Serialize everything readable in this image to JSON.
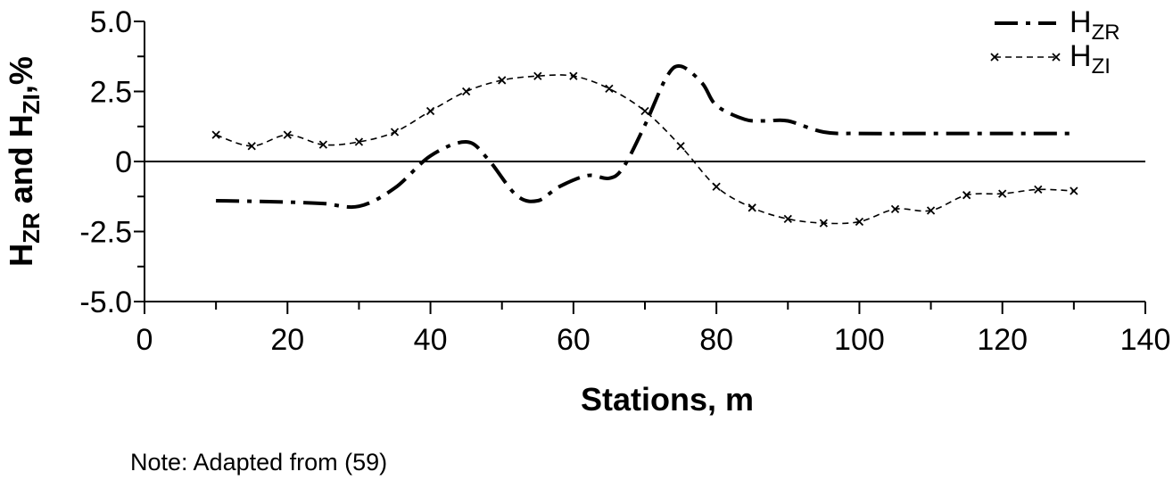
{
  "chart_data": {
    "type": "line",
    "xlabel": "Stations, m",
    "ylabel": {
      "parts": [
        {
          "text": "H",
          "sub": false
        },
        {
          "text": "ZR",
          "sub": true
        },
        {
          "text": " and H",
          "sub": false
        },
        {
          "text": "ZI",
          "sub": true
        },
        {
          "text": ",%",
          "sub": false
        }
      ]
    },
    "xlim": [
      0,
      140
    ],
    "ylim": [
      -5,
      5
    ],
    "xticks": [
      0,
      20,
      40,
      60,
      80,
      100,
      120,
      140
    ],
    "xtick_labels": [
      "0",
      "20",
      "40",
      "60",
      "80",
      "100",
      "120",
      "140"
    ],
    "yticks": [
      5,
      2.5,
      0,
      -2.5,
      -5
    ],
    "ytick_labels": [
      "5.0",
      "2.5",
      "0",
      "-2.5",
      "-5.0"
    ],
    "zero_line": true,
    "grid": false,
    "legend_position": "top-right",
    "series": [
      {
        "name": "H",
        "name_sub": "ZR",
        "style": "dash-dot",
        "marker": "none",
        "color": "#000000",
        "x": [
          10,
          15,
          20,
          25,
          30,
          35,
          40,
          45,
          48,
          52,
          55,
          58,
          62,
          65,
          67,
          70,
          73,
          75,
          78,
          80,
          84,
          87,
          90,
          95,
          100,
          110,
          120,
          130
        ],
        "y": [
          -1.4,
          -1.42,
          -1.45,
          -1.5,
          -1.6,
          -0.95,
          0.2,
          0.7,
          0.1,
          -1.2,
          -1.4,
          -0.9,
          -0.5,
          -0.6,
          -0.2,
          1.3,
          3.0,
          3.4,
          2.8,
          2.0,
          1.5,
          1.45,
          1.45,
          1.05,
          1.0,
          1.0,
          1.0,
          1.0
        ]
      },
      {
        "name": "H",
        "name_sub": "ZI",
        "style": "dashed",
        "marker": "x",
        "color": "#000000",
        "x": [
          10,
          15,
          20,
          25,
          30,
          35,
          40,
          45,
          50,
          55,
          60,
          65,
          70,
          75,
          80,
          85,
          90,
          95,
          100,
          105,
          110,
          115,
          120,
          125,
          130
        ],
        "y": [
          0.95,
          0.55,
          0.95,
          0.6,
          0.7,
          1.05,
          1.8,
          2.5,
          2.9,
          3.05,
          3.05,
          2.6,
          1.8,
          0.55,
          -0.9,
          -1.65,
          -2.05,
          -2.2,
          -2.15,
          -1.7,
          -1.75,
          -1.2,
          -1.15,
          -1.0,
          -1.05
        ]
      }
    ]
  },
  "note": "Note: Adapted from (59)"
}
